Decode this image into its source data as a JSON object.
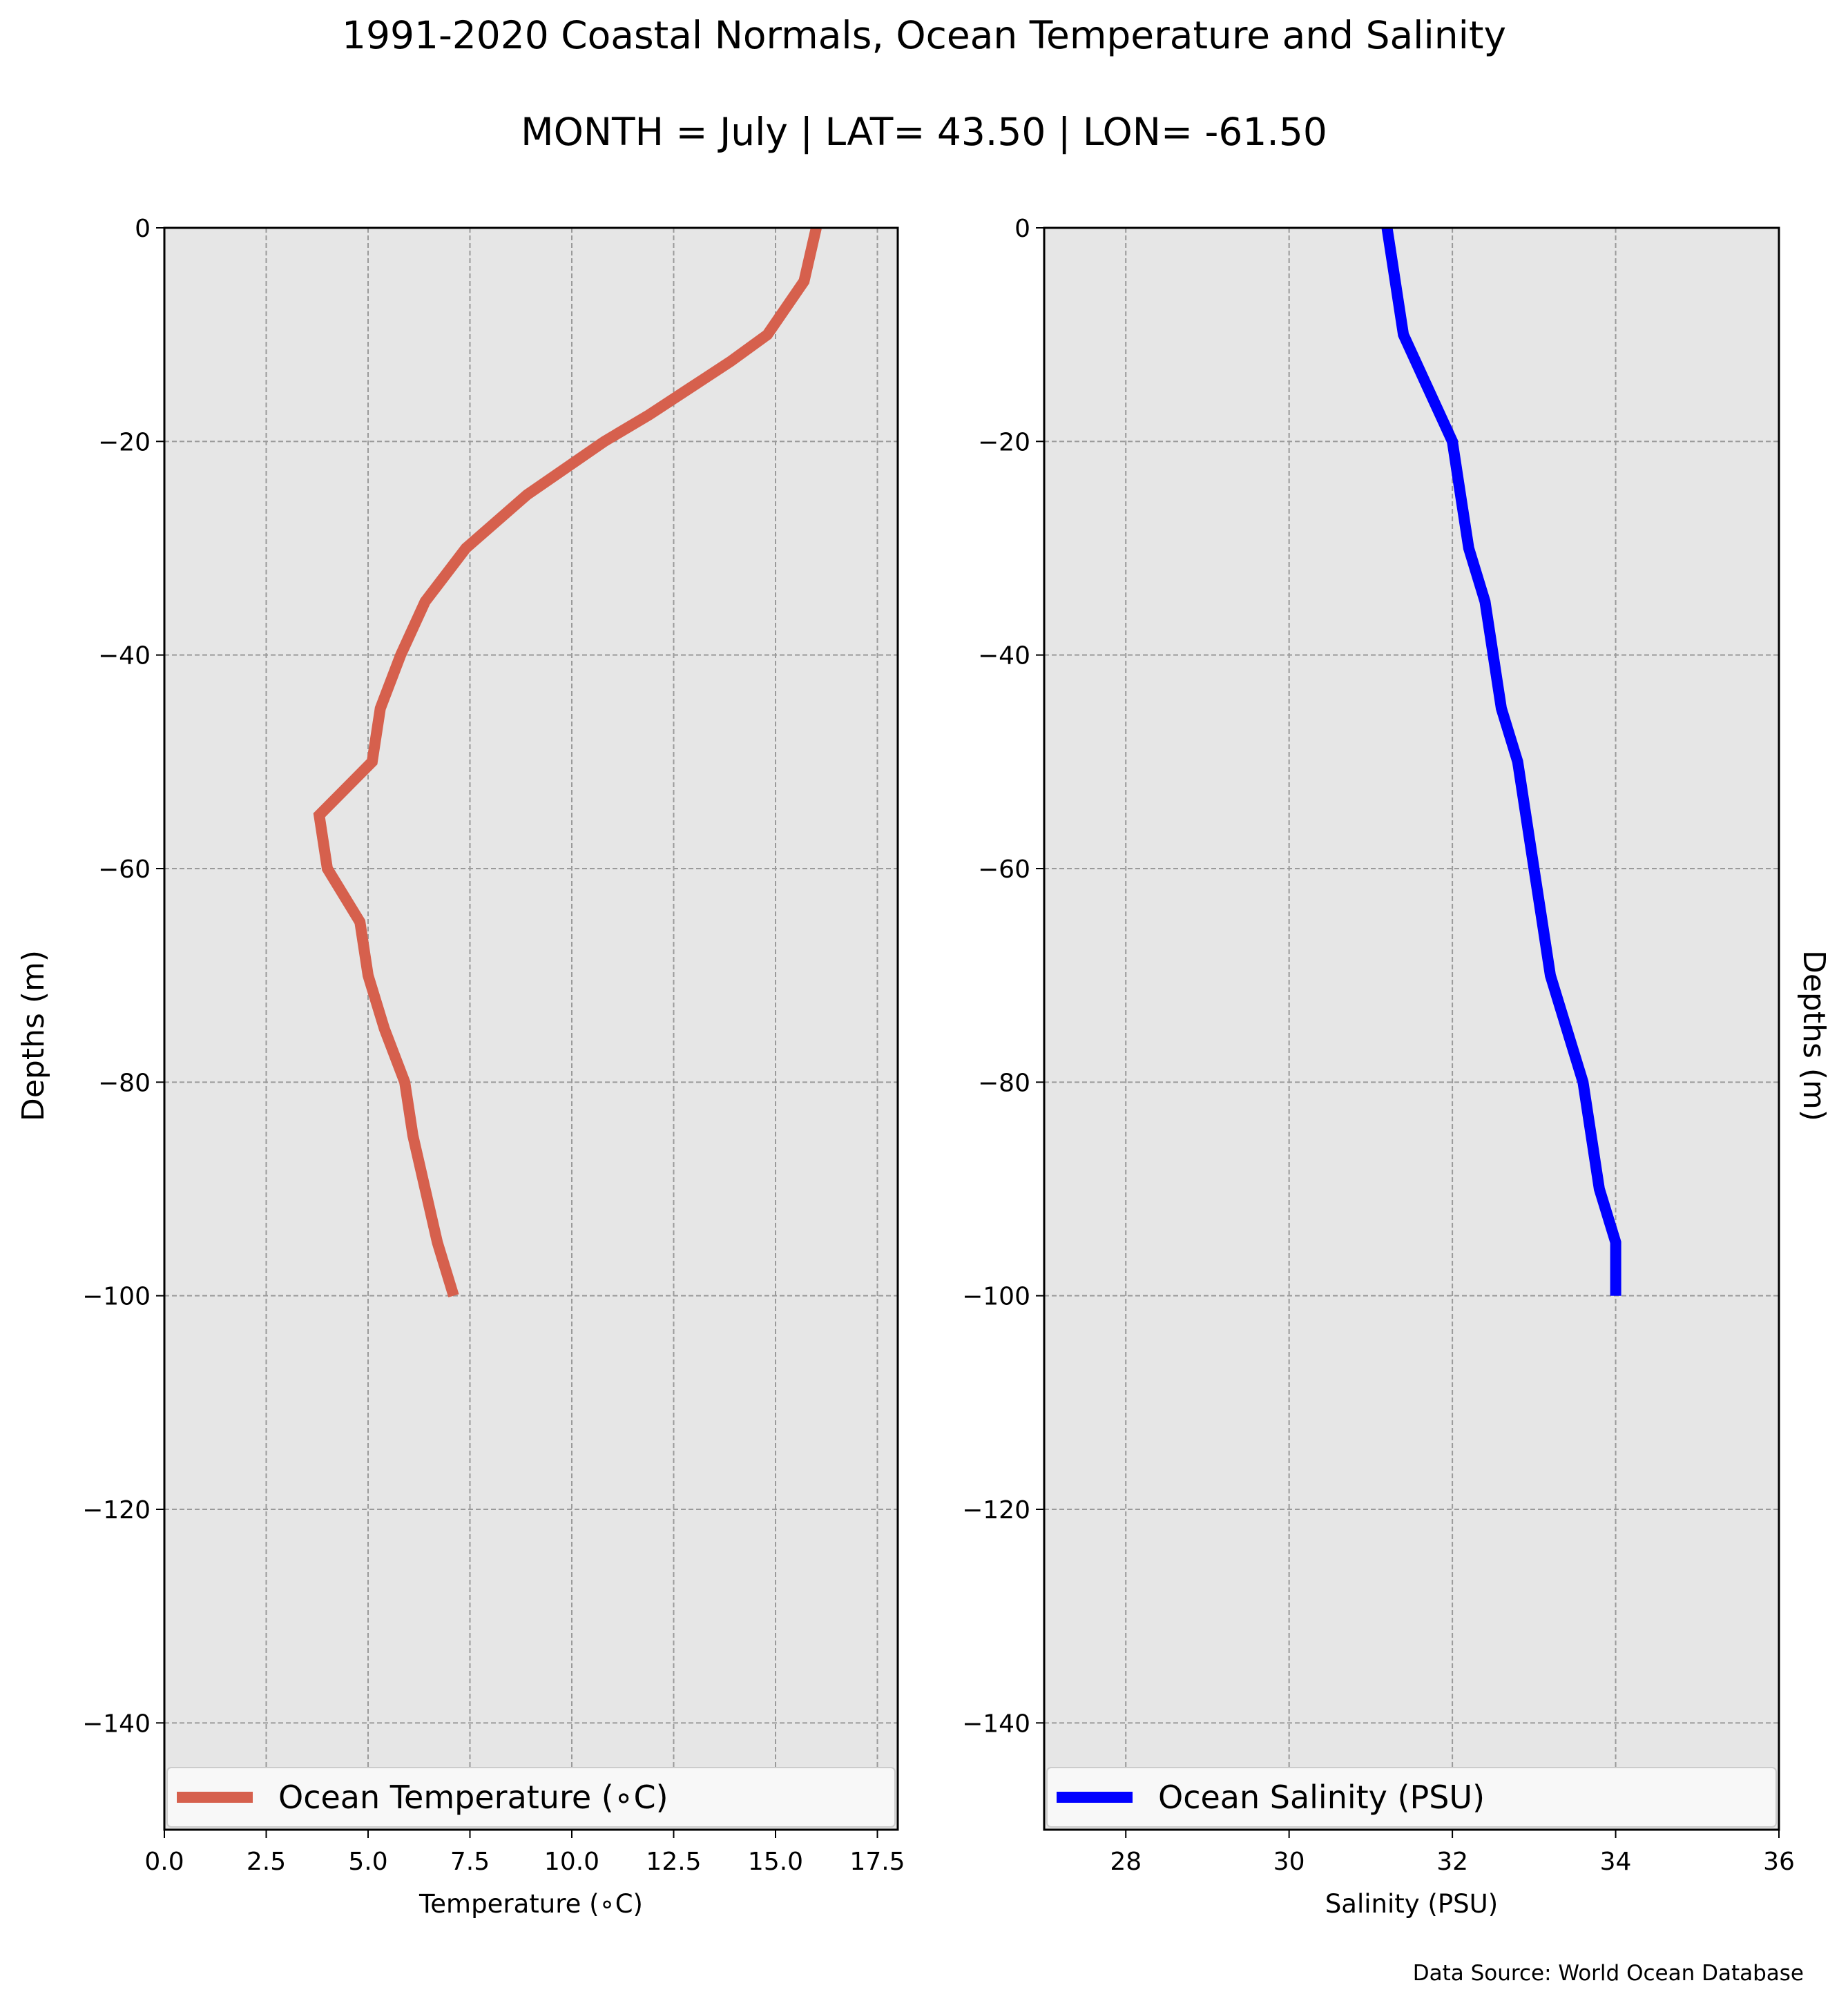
{
  "figure": {
    "title": "1991-2020 Coastal Normals, Ocean Temperature and Salinity",
    "subtitle": "MONTH = July | LAT= 43.50 | LON= -61.50",
    "source_note": "Data Source: World Ocean Database",
    "colors": {
      "panel_bg": "#e6e6e6",
      "grid": "#9a9a9a"
    }
  },
  "chart_data": [
    {
      "type": "line",
      "xlabel": "Temperature (∘C)",
      "ylabel": "Depths (m)",
      "xlim": [
        0,
        18
      ],
      "ylim": [
        -150,
        0
      ],
      "xticks": [
        0,
        2.5,
        5,
        7.5,
        10,
        12.5,
        15,
        17.5
      ],
      "xtick_labels": [
        "0.0",
        "2.5",
        "5.0",
        "7.5",
        "10.0",
        "12.5",
        "15.0",
        "17.5"
      ],
      "yticks": [
        0,
        -20,
        -40,
        -60,
        -80,
        -100,
        -120,
        -140
      ],
      "ytick_labels": [
        "0",
        "−20",
        "−40",
        "−60",
        "−80",
        "−100",
        "−120",
        "−140"
      ],
      "grid": true,
      "legend": "bottom",
      "series": [
        {
          "name": "Ocean Temperature (∘C)",
          "color": "#d6604d",
          "points": [
            [
              16.0,
              0
            ],
            [
              15.7,
              -5
            ],
            [
              14.8,
              -10
            ],
            [
              13.9,
              -12.5
            ],
            [
              12.9,
              -15
            ],
            [
              11.9,
              -17.5
            ],
            [
              10.8,
              -20
            ],
            [
              8.9,
              -25
            ],
            [
              7.4,
              -30
            ],
            [
              6.4,
              -35
            ],
            [
              5.8,
              -40
            ],
            [
              5.3,
              -45
            ],
            [
              5.1,
              -50
            ],
            [
              3.8,
              -55
            ],
            [
              4.0,
              -60
            ],
            [
              4.8,
              -65
            ],
            [
              5.0,
              -70
            ],
            [
              5.4,
              -75
            ],
            [
              5.9,
              -80
            ],
            [
              6.1,
              -85
            ],
            [
              6.4,
              -90
            ],
            [
              6.7,
              -95
            ],
            [
              7.1,
              -100
            ]
          ]
        }
      ]
    },
    {
      "type": "line",
      "xlabel": "Salinity (PSU)",
      "ylabel": "Depths (m)",
      "xlim": [
        27,
        36
      ],
      "ylim": [
        -150,
        0
      ],
      "xticks": [
        28,
        30,
        32,
        34,
        36
      ],
      "xtick_labels": [
        "28",
        "30",
        "32",
        "34",
        "36"
      ],
      "yticks": [
        0,
        -20,
        -40,
        -60,
        -80,
        -100,
        -120,
        -140
      ],
      "ytick_labels": [
        "0",
        "−20",
        "−40",
        "−60",
        "−80",
        "−100",
        "−120",
        "−140"
      ],
      "grid": true,
      "legend": "bottom",
      "series": [
        {
          "name": "Ocean Salinity (PSU)",
          "color": "#0000ff",
          "points": [
            [
              31.2,
              0
            ],
            [
              31.4,
              -10
            ],
            [
              31.7,
              -15
            ],
            [
              32.0,
              -20
            ],
            [
              32.1,
              -25
            ],
            [
              32.2,
              -30
            ],
            [
              32.4,
              -35
            ],
            [
              32.5,
              -40
            ],
            [
              32.6,
              -45
            ],
            [
              32.8,
              -50
            ],
            [
              32.9,
              -55
            ],
            [
              33.0,
              -60
            ],
            [
              33.1,
              -65
            ],
            [
              33.2,
              -70
            ],
            [
              33.4,
              -75
            ],
            [
              33.6,
              -80
            ],
            [
              33.7,
              -85
            ],
            [
              33.8,
              -90
            ],
            [
              34.0,
              -95
            ],
            [
              34.0,
              -100
            ]
          ]
        }
      ]
    }
  ]
}
